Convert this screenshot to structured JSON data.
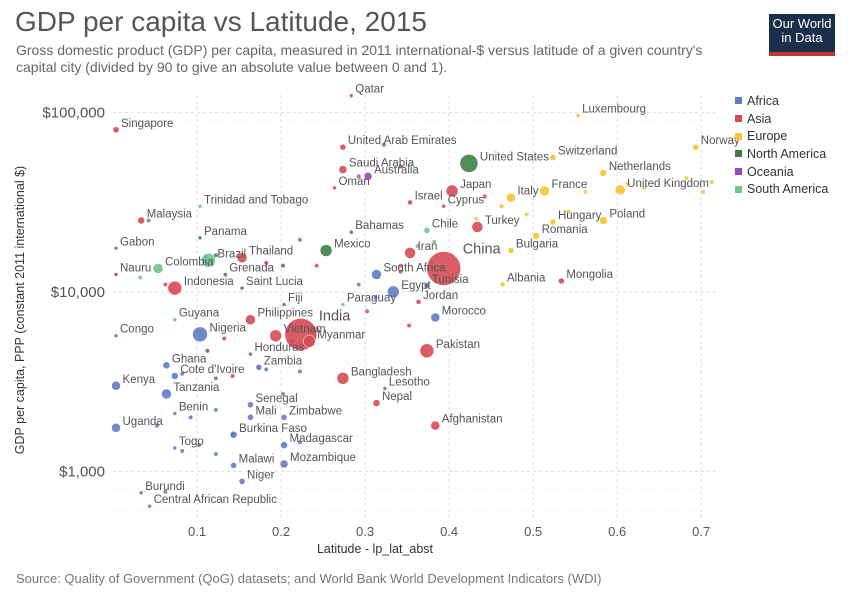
{
  "header": {
    "title": "GDP per capita vs Latitude, 2015",
    "subtitle": "Gross domestic product (GDP) per capita, measured in 2011 international-$ versus latitude of a given country's capital city (divided by 90 to give an absolute value between 0 and 1).",
    "logo_line1": "Our World",
    "logo_line2": "in Data"
  },
  "footer": {
    "source": "Source: Quality of Government (QoG) datasets; and World Bank World Development Indicators (WDI)"
  },
  "colors": {
    "Africa": "#5f7dc4",
    "Asia": "#d64a53",
    "Europe": "#f4c431",
    "North America": "#3f7f46",
    "Oceania": "#9b47b8",
    "South America": "#6cc88b",
    "grid": "#dddddd",
    "text": "#555555"
  },
  "chart_data": {
    "type": "scatter",
    "xlabel": "Latitude - lp_lat_abst",
    "ylabel": "GDP per capita, PPP (constant 2011 international $)",
    "x_ticks": [
      0.1,
      0.2,
      0.3,
      0.4,
      0.5,
      0.6,
      0.7
    ],
    "x_tick_labels": [
      "0.1",
      "0.2",
      "0.3",
      "0.4",
      "0.5",
      "0.6",
      "0.7"
    ],
    "y_scale": "log",
    "y_ticks": [
      1000,
      10000,
      100000
    ],
    "y_tick_labels": [
      "$1,000",
      "$10,000",
      "$100,000"
    ],
    "xlim": [
      0,
      0.72
    ],
    "ylim": [
      550,
      125000
    ],
    "grid": true,
    "legend_position": "right",
    "series": [
      {
        "name": "Africa"
      },
      {
        "name": "Asia"
      },
      {
        "name": "Europe"
      },
      {
        "name": "North America"
      },
      {
        "name": "Oceania"
      },
      {
        "name": "South America"
      }
    ],
    "points": [
      {
        "label": "Qatar",
        "x": 0.28,
        "y": 124000,
        "continent": "Asia",
        "size": 2
      },
      {
        "label": "Luxembourg",
        "x": 0.55,
        "y": 96000,
        "continent": "Europe",
        "size": 2
      },
      {
        "label": "Singapore",
        "x": 0.0,
        "y": 80000,
        "continent": "Asia",
        "size": 3
      },
      {
        "label": "United Arab Emirates",
        "x": 0.27,
        "y": 64000,
        "continent": "Asia",
        "size": 3
      },
      {
        "label": "Norway",
        "x": 0.69,
        "y": 64000,
        "continent": "Europe",
        "size": 3
      },
      {
        "label": "Switzerland",
        "x": 0.52,
        "y": 56000,
        "continent": "Europe",
        "size": 3
      },
      {
        "label": "United States",
        "x": 0.42,
        "y": 52000,
        "continent": "North America",
        "size": 9
      },
      {
        "label": "Saudi Arabia",
        "x": 0.27,
        "y": 48000,
        "continent": "Asia",
        "size": 4
      },
      {
        "label": "Netherlands",
        "x": 0.58,
        "y": 46000,
        "continent": "Europe",
        "size": 3.5
      },
      {
        "label": "Australia",
        "x": 0.3,
        "y": 44000,
        "continent": "Oceania",
        "size": 4
      },
      {
        "label": "Oman",
        "x": 0.26,
        "y": 38000,
        "continent": "Asia",
        "size": 2
      },
      {
        "label": "United Kingdom",
        "x": 0.6,
        "y": 37000,
        "continent": "Europe",
        "size": 5
      },
      {
        "label": "France",
        "x": 0.51,
        "y": 36500,
        "continent": "Europe",
        "size": 5
      },
      {
        "label": "Japan",
        "x": 0.4,
        "y": 36500,
        "continent": "Asia",
        "size": 6
      },
      {
        "label": "Italy",
        "x": 0.47,
        "y": 33500,
        "continent": "Europe",
        "size": 4.5
      },
      {
        "label": "Israel",
        "x": 0.35,
        "y": 31500,
        "continent": "Asia",
        "size": 2.5
      },
      {
        "label": "Trinidad and Tobago",
        "x": 0.1,
        "y": 30000,
        "continent": "South America",
        "size": 2
      },
      {
        "label": "Cyprus",
        "x": 0.39,
        "y": 30000,
        "continent": "Asia",
        "size": 2
      },
      {
        "label": "Poland",
        "x": 0.58,
        "y": 25000,
        "continent": "Europe",
        "size": 4
      },
      {
        "label": "Malaysia",
        "x": 0.03,
        "y": 25000,
        "continent": "Asia",
        "size": 3.5
      },
      {
        "label": "Hungary",
        "x": 0.52,
        "y": 24500,
        "continent": "Europe",
        "size": 3
      },
      {
        "label": "Turkey",
        "x": 0.43,
        "y": 23000,
        "continent": "Asia",
        "size": 5.5
      },
      {
        "label": "Chile",
        "x": 0.37,
        "y": 22000,
        "continent": "South America",
        "size": 3
      },
      {
        "label": "Bahamas",
        "x": 0.28,
        "y": 21500,
        "continent": "North America",
        "size": 2
      },
      {
        "label": "Romania",
        "x": 0.5,
        "y": 20500,
        "continent": "Europe",
        "size": 3.5
      },
      {
        "label": "Panama",
        "x": 0.1,
        "y": 20000,
        "continent": "North America",
        "size": 2
      },
      {
        "label": "Mexico",
        "x": 0.25,
        "y": 17000,
        "continent": "North America",
        "size": 6
      },
      {
        "label": "Gabon",
        "x": 0.0,
        "y": 17500,
        "continent": "Africa",
        "size": 2
      },
      {
        "label": "Bulgaria",
        "x": 0.47,
        "y": 17000,
        "continent": "Europe",
        "size": 3
      },
      {
        "label": "Brazil",
        "x": 0.11,
        "y": 15000,
        "continent": "South America",
        "size": 7
      },
      {
        "label": "Thailand",
        "x": 0.15,
        "y": 15500,
        "continent": "Asia",
        "size": 5
      },
      {
        "label": "Iran",
        "x": 0.35,
        "y": 16500,
        "continent": "Asia",
        "size": 5.5
      },
      {
        "label": "China",
        "x": 0.39,
        "y": 13500,
        "continent": "Asia",
        "size": 17
      },
      {
        "label": "Colombia",
        "x": 0.05,
        "y": 13500,
        "continent": "South America",
        "size": 5
      },
      {
        "label": "South Africa",
        "x": 0.31,
        "y": 12500,
        "continent": "Africa",
        "size": 5
      },
      {
        "label": "Grenada",
        "x": 0.13,
        "y": 12500,
        "continent": "North America",
        "size": 2
      },
      {
        "label": "Nauru",
        "x": 0.0,
        "y": 12500,
        "continent": "Oceania",
        "size": 2
      },
      {
        "label": "Indonesia",
        "x": 0.07,
        "y": 10500,
        "continent": "Asia",
        "size": 7
      },
      {
        "label": "Saint Lucia",
        "x": 0.15,
        "y": 10500,
        "continent": "North America",
        "size": 2
      },
      {
        "label": "Albania",
        "x": 0.46,
        "y": 11000,
        "continent": "Europe",
        "size": 2.5
      },
      {
        "label": "Mongolia",
        "x": 0.53,
        "y": 11500,
        "continent": "Asia",
        "size": 3
      },
      {
        "label": "Tunisia",
        "x": 0.37,
        "y": 10800,
        "continent": "Africa",
        "size": 3
      },
      {
        "label": "Egypt",
        "x": 0.33,
        "y": 10000,
        "continent": "Africa",
        "size": 6
      },
      {
        "label": "Paraguay",
        "x": 0.27,
        "y": 8500,
        "continent": "South America",
        "size": 2
      },
      {
        "label": "Fiji",
        "x": 0.2,
        "y": 8500,
        "continent": "Oceania",
        "size": 2
      },
      {
        "label": "Jordan",
        "x": 0.36,
        "y": 8800,
        "continent": "Asia",
        "size": 2.5
      },
      {
        "label": "Guyana",
        "x": 0.07,
        "y": 7000,
        "continent": "South America",
        "size": 2
      },
      {
        "label": "Philippines",
        "x": 0.16,
        "y": 7000,
        "continent": "Asia",
        "size": 5
      },
      {
        "label": "Morocco",
        "x": 0.38,
        "y": 7200,
        "continent": "Africa",
        "size": 4.5
      },
      {
        "label": "Congo",
        "x": 0.0,
        "y": 5700,
        "continent": "Africa",
        "size": 2
      },
      {
        "label": "Nigeria",
        "x": 0.1,
        "y": 5800,
        "continent": "Africa",
        "size": 7.5
      },
      {
        "label": "Vietnam",
        "x": 0.19,
        "y": 5700,
        "continent": "Asia",
        "size": 6
      },
      {
        "label": "India",
        "x": 0.22,
        "y": 5800,
        "continent": "Asia",
        "size": 16
      },
      {
        "label": "Myanmar",
        "x": 0.23,
        "y": 5300,
        "continent": "Asia",
        "size": 6
      },
      {
        "label": "Pakistan",
        "x": 0.37,
        "y": 4700,
        "continent": "Asia",
        "size": 7
      },
      {
        "label": "Honduras",
        "x": 0.16,
        "y": 4500,
        "continent": "North America",
        "size": 2
      },
      {
        "label": "Ghana",
        "x": 0.06,
        "y": 3900,
        "continent": "Africa",
        "size": 3.5
      },
      {
        "label": "Zambia",
        "x": 0.17,
        "y": 3800,
        "continent": "Africa",
        "size": 3
      },
      {
        "label": "Bangladesh",
        "x": 0.27,
        "y": 3300,
        "continent": "Asia",
        "size": 6
      },
      {
        "label": "Cote d'Ivoire",
        "x": 0.07,
        "y": 3400,
        "continent": "Africa",
        "size": 3.5
      },
      {
        "label": "Kenya",
        "x": 0.0,
        "y": 3000,
        "continent": "Africa",
        "size": 4.5
      },
      {
        "label": "Tanzania",
        "x": 0.06,
        "y": 2700,
        "continent": "Africa",
        "size": 5
      },
      {
        "label": "Lesotho",
        "x": 0.32,
        "y": 2900,
        "continent": "Africa",
        "size": 2
      },
      {
        "label": "Nepal",
        "x": 0.31,
        "y": 2400,
        "continent": "Asia",
        "size": 3.5
      },
      {
        "label": "Senegal",
        "x": 0.16,
        "y": 2350,
        "continent": "Africa",
        "size": 3
      },
      {
        "label": "Benin",
        "x": 0.07,
        "y": 2100,
        "continent": "Africa",
        "size": 2
      },
      {
        "label": "Mali",
        "x": 0.16,
        "y": 2000,
        "continent": "Africa",
        "size": 3
      },
      {
        "label": "Zimbabwe",
        "x": 0.2,
        "y": 2000,
        "continent": "Africa",
        "size": 3
      },
      {
        "label": "Uganda",
        "x": 0.0,
        "y": 1750,
        "continent": "Africa",
        "size": 4.5
      },
      {
        "label": "Afghanistan",
        "x": 0.38,
        "y": 1800,
        "continent": "Asia",
        "size": 4.5
      },
      {
        "label": "Burkina Faso",
        "x": 0.14,
        "y": 1600,
        "continent": "Africa",
        "size": 3.5
      },
      {
        "label": "Madagascar",
        "x": 0.2,
        "y": 1400,
        "continent": "Africa",
        "size": 3.5
      },
      {
        "label": "Togo",
        "x": 0.07,
        "y": 1350,
        "continent": "Africa",
        "size": 2
      },
      {
        "label": "Mozambique",
        "x": 0.2,
        "y": 1100,
        "continent": "Africa",
        "size": 4
      },
      {
        "label": "Malawi",
        "x": 0.14,
        "y": 1080,
        "continent": "Africa",
        "size": 3
      },
      {
        "label": "Niger",
        "x": 0.15,
        "y": 880,
        "continent": "Africa",
        "size": 3
      },
      {
        "label": "Burundi",
        "x": 0.03,
        "y": 760,
        "continent": "Africa",
        "size": 2
      },
      {
        "label": "Central African Republic",
        "x": 0.04,
        "y": 640,
        "continent": "Africa",
        "size": 2
      }
    ],
    "minor_points": [
      {
        "x": 0.32,
        "y": 66000,
        "continent": "Asia"
      },
      {
        "x": 0.34,
        "y": 50000,
        "continent": "Asia"
      },
      {
        "x": 0.29,
        "y": 44000,
        "continent": "Asia"
      },
      {
        "x": 0.44,
        "y": 34000,
        "continent": "Asia"
      },
      {
        "x": 0.56,
        "y": 36000,
        "continent": "Europe"
      },
      {
        "x": 0.61,
        "y": 40000,
        "continent": "Europe"
      },
      {
        "x": 0.7,
        "y": 36000,
        "continent": "Europe"
      },
      {
        "x": 0.71,
        "y": 41000,
        "continent": "Europe"
      },
      {
        "x": 0.68,
        "y": 43000,
        "continent": "Europe"
      },
      {
        "x": 0.63,
        "y": 38000,
        "continent": "Europe"
      },
      {
        "x": 0.54,
        "y": 28000,
        "continent": "Europe"
      },
      {
        "x": 0.49,
        "y": 27000,
        "continent": "Europe"
      },
      {
        "x": 0.46,
        "y": 30000,
        "continent": "Europe"
      },
      {
        "x": 0.43,
        "y": 25500,
        "continent": "Europe"
      },
      {
        "x": 0.38,
        "y": 19000,
        "continent": "South America"
      },
      {
        "x": 0.36,
        "y": 18000,
        "continent": "South America"
      },
      {
        "x": 0.22,
        "y": 19500,
        "continent": "Africa"
      },
      {
        "x": 0.04,
        "y": 25000,
        "continent": "Africa"
      },
      {
        "x": 0.03,
        "y": 12000,
        "continent": "South America"
      },
      {
        "x": 0.06,
        "y": 11000,
        "continent": "Asia"
      },
      {
        "x": 0.12,
        "y": 16000,
        "continent": "North America"
      },
      {
        "x": 0.18,
        "y": 14500,
        "continent": "Asia"
      },
      {
        "x": 0.2,
        "y": 14000,
        "continent": "North America"
      },
      {
        "x": 0.24,
        "y": 14000,
        "continent": "Asia"
      },
      {
        "x": 0.34,
        "y": 14000,
        "continent": "Asia"
      },
      {
        "x": 0.34,
        "y": 13000,
        "continent": "Asia"
      },
      {
        "x": 0.29,
        "y": 11000,
        "continent": "Africa"
      },
      {
        "x": 0.31,
        "y": 9300,
        "continent": "Africa"
      },
      {
        "x": 0.3,
        "y": 7800,
        "continent": "Asia"
      },
      {
        "x": 0.35,
        "y": 6500,
        "continent": "Asia"
      },
      {
        "x": 0.24,
        "y": 6200,
        "continent": "Asia"
      },
      {
        "x": 0.21,
        "y": 5300,
        "continent": "Oceania"
      },
      {
        "x": 0.13,
        "y": 5500,
        "continent": "Asia"
      },
      {
        "x": 0.11,
        "y": 4700,
        "continent": "North America"
      },
      {
        "x": 0.18,
        "y": 3700,
        "continent": "Africa"
      },
      {
        "x": 0.22,
        "y": 3600,
        "continent": "Africa"
      },
      {
        "x": 0.08,
        "y": 3500,
        "continent": "Africa"
      },
      {
        "x": 0.12,
        "y": 3300,
        "continent": "Africa"
      },
      {
        "x": 0.14,
        "y": 3400,
        "continent": "Asia"
      },
      {
        "x": 0.2,
        "y": 2700,
        "continent": "Africa"
      },
      {
        "x": 0.09,
        "y": 2000,
        "continent": "Africa"
      },
      {
        "x": 0.05,
        "y": 1800,
        "continent": "Africa"
      },
      {
        "x": 0.08,
        "y": 1300,
        "continent": "Africa"
      },
      {
        "x": 0.12,
        "y": 1250,
        "continent": "Africa"
      },
      {
        "x": 0.1,
        "y": 1400,
        "continent": "Africa"
      },
      {
        "x": 0.22,
        "y": 1450,
        "continent": "Africa"
      },
      {
        "x": 0.14,
        "y": 1600,
        "continent": "Africa"
      },
      {
        "x": 0.12,
        "y": 2200,
        "continent": "Africa"
      },
      {
        "x": 0.06,
        "y": 770,
        "continent": "Africa"
      }
    ]
  }
}
